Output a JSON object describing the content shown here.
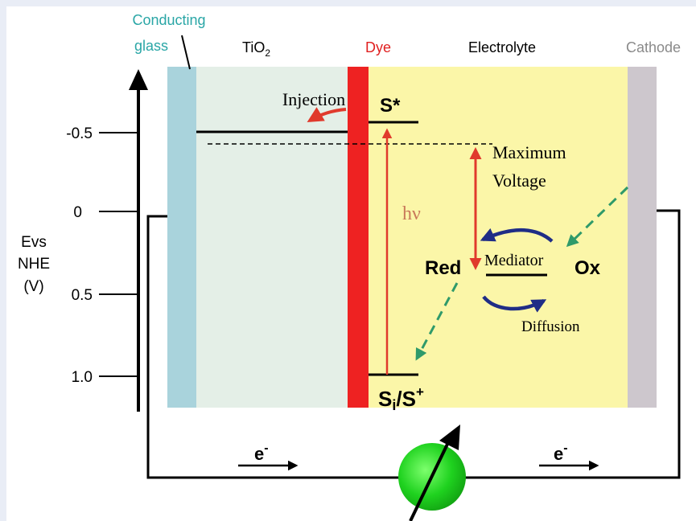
{
  "labels": {
    "conducting_glass_line1": "Conducting",
    "conducting_glass_line2": "glass",
    "tio2_base": "TiO",
    "tio2_sub": "2",
    "dye": "Dye",
    "electrolyte": "Electrolyte",
    "cathode": "Cathode",
    "injection": "Injection",
    "s_star": "S*",
    "max_voltage_line1": "Maximum",
    "max_voltage_line2": "Voltage",
    "hv": "hν",
    "red": "Red",
    "mediator": "Mediator",
    "ox": "Ox",
    "diffusion": "Diffusion",
    "ground_state_s": "S",
    "ground_state_i": "i",
    "ground_state_rest": "/S",
    "ground_state_sup": "+",
    "electron_left": "e",
    "electron_left_sup": "-",
    "electron_right": "e",
    "electron_right_sup": "-"
  },
  "axis": {
    "title_line1": "Evs",
    "title_line2": "NHE",
    "title_line3": "(V)",
    "ticks": [
      "-0.5",
      "0",
      "0.5",
      "1.0"
    ]
  },
  "colors": {
    "background": "#e9edf6",
    "panel": "#ffffff",
    "glass": "#a9d3dc",
    "tio2": "#e4efe7",
    "dye": "#ee2222",
    "electrolyte": "#fbf6a8",
    "cathode": "#cdc7cd",
    "arrow_red": "#e03a2c",
    "arrow_blue": "#1f2d86",
    "arrow_green": "#2f9a6a",
    "load_green": "#1fd21f",
    "teal_text": "#2aa6a6",
    "hv_text": "#c97a5a"
  }
}
